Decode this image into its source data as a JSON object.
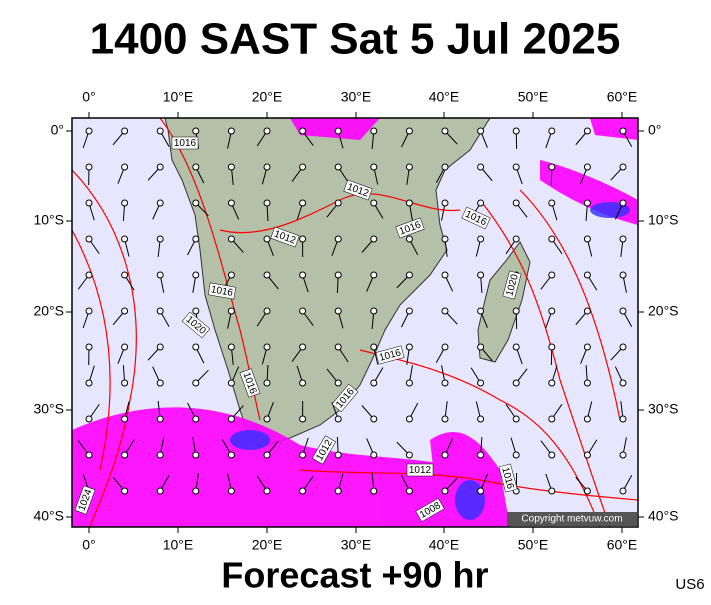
{
  "header": {
    "title": "1400 SAST Sat 5 Jul 2025"
  },
  "axes": {
    "top": [
      "0°",
      "10°E",
      "20°E",
      "30°E",
      "40°E",
      "50°E",
      "60°E"
    ],
    "bottom": [
      "0°",
      "10°E",
      "20°E",
      "30°E",
      "40°E",
      "50°E",
      "60°E"
    ],
    "left": [
      "0°",
      "10°S",
      "20°S",
      "30°S",
      "40°S"
    ],
    "right": [
      "0°",
      "10°S",
      "20°S",
      "30°S",
      "40°S"
    ]
  },
  "isobars": [
    "1016",
    "1012",
    "1016",
    "1016",
    "1012",
    "1016",
    "1020",
    "1020",
    "1016",
    "1016",
    "1016",
    "1012",
    "1012",
    "1016",
    "1024",
    "1008"
  ],
  "copyright": "Copyright metvuw.com",
  "footer": {
    "forecast": "Forecast +90 hr",
    "code": "US6"
  }
}
